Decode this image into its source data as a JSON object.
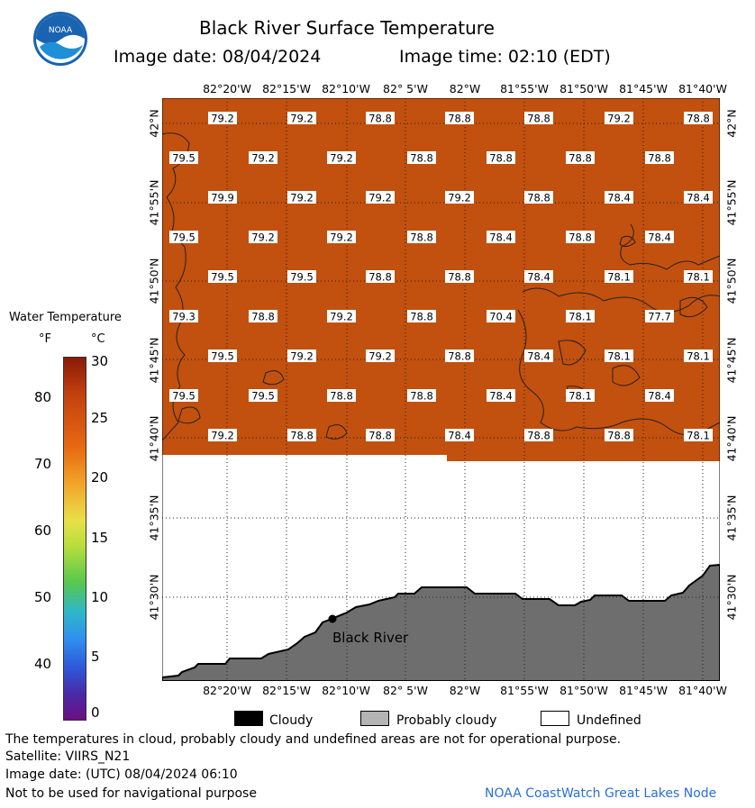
{
  "header": {
    "title": "Black River Surface Temperature",
    "image_date_label": "Image date: 08/04/2024",
    "image_time_label": "Image time: 02:10 (EDT)",
    "logo_text": "NOAA"
  },
  "axes": {
    "lon_labels": [
      "82°20'W",
      "82°15'W",
      "82°10'W",
      "82° 5'W",
      "82°W",
      "81°55'W",
      "81°50'W",
      "81°45'W",
      "81°40'W"
    ],
    "lat_labels": [
      "42°N",
      "41°55'N",
      "41°50'N",
      "41°45'N",
      "41°40'N",
      "41°35'N",
      "41°30'N"
    ]
  },
  "legend_scale": {
    "title": "Water Temperature",
    "unit_f": "°F",
    "unit_c": "°C",
    "f_ticks": [
      "80",
      "70",
      "60",
      "50",
      "40"
    ],
    "c_ticks": [
      "30",
      "25",
      "20",
      "15",
      "10",
      "5",
      "0"
    ]
  },
  "map": {
    "place_label": "Black River",
    "colors": {
      "water": "#c2500e",
      "land": "#6e6e6e",
      "undefined": "#ffffff"
    },
    "temp_rows": [
      [
        "79.2",
        "79.2",
        "78.8",
        "78.8",
        "78.8",
        "79.2",
        "78.8"
      ],
      [
        "79.5",
        "79.2",
        "79.2",
        "78.8",
        "78.8",
        "78.8",
        "78.8"
      ],
      [
        "79.9",
        "79.2",
        "79.2",
        "79.2",
        "78.8",
        "78.4",
        "78.4"
      ],
      [
        "79.5",
        "79.2",
        "79.2",
        "78.8",
        "78.4",
        "78.8",
        "78.4"
      ],
      [
        "79.5",
        "79.5",
        "78.8",
        "78.8",
        "78.4",
        "78.1",
        "78.1"
      ],
      [
        "79.3",
        "78.8",
        "79.2",
        "78.8",
        "70.4",
        "78.1",
        "77.7"
      ],
      [
        "79.5",
        "79.2",
        "79.2",
        "78.8",
        "78.4",
        "78.1",
        "78.1"
      ],
      [
        "79.5",
        "79.5",
        "78.8",
        "78.8",
        "78.4",
        "78.1",
        "78.4"
      ],
      [
        "79.2",
        "78.8",
        "78.8",
        "78.4",
        "78.8",
        "78.8",
        "78.1"
      ]
    ]
  },
  "cloud_legend": {
    "cloudy": "Cloudy",
    "probably_cloudy": "Probably cloudy",
    "undefined": "Undefined"
  },
  "footer": {
    "disclaimer": "The temperatures in cloud, probably cloudy and undefined areas are not for operational purpose.",
    "satellite": "Satellite: VIIRS_N21",
    "image_date_utc": "Image date: (UTC) 08/04/2024  06:10",
    "nav_warning": "Not to be used for navigational purpose",
    "credit": "NOAA CoastWatch Great Lakes Node"
  }
}
